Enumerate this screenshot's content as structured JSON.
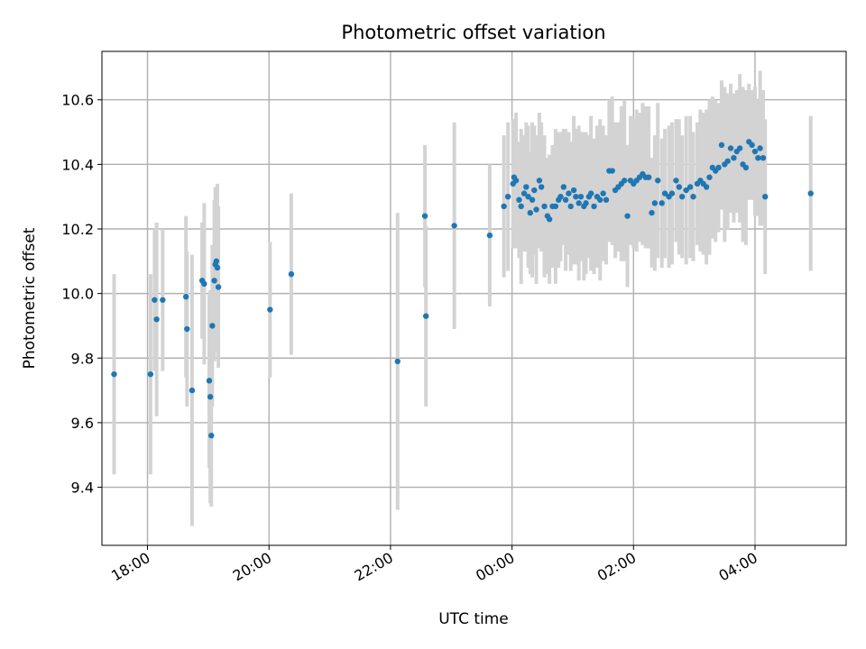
{
  "chart_data": {
    "type": "scatter",
    "title": "Photometric offset variation",
    "xlabel": "UTC time",
    "ylabel": "Photometric offset",
    "x_unit": "UTC time",
    "xlim": [
      "17:15",
      "05:30"
    ],
    "ylim": [
      9.22,
      10.75
    ],
    "x_ticks": [
      "18:00",
      "20:00",
      "22:00",
      "00:00",
      "02:00",
      "04:00"
    ],
    "y_ticks": [
      9.4,
      9.6,
      9.8,
      10.0,
      10.2,
      10.4,
      10.6
    ],
    "y_tick_labels": [
      "9.4",
      "9.6",
      "9.8",
      "10.0",
      "10.2",
      "10.4",
      "10.6"
    ],
    "grid": true,
    "legend": "none",
    "colors": {
      "point": "#1f77b4",
      "errorbar": "#d3d3d3",
      "grid": "#b0b0b0"
    },
    "x": [
      "17:27",
      "18:03",
      "18:07",
      "18:09",
      "18:15",
      "18:38",
      "18:39",
      "18:44",
      "18:54",
      "18:56",
      "19:01",
      "19:02",
      "19:03",
      "19:04",
      "19:06",
      "19:07",
      "19:08",
      "19:09",
      "19:10",
      "20:01",
      "20:22",
      "22:07",
      "22:34",
      "22:35",
      "23:03",
      "23:38",
      "23:52",
      "23:56",
      "00:01",
      "00:02",
      "00:04",
      "00:07",
      "00:09",
      "00:12",
      "00:14",
      "00:16",
      "00:18",
      "00:20",
      "00:22",
      "00:24",
      "00:27",
      "00:29",
      "00:32",
      "00:35",
      "00:37",
      "00:40",
      "00:43",
      "00:46",
      "00:48",
      "00:51",
      "00:53",
      "00:56",
      "00:58",
      "01:01",
      "01:03",
      "01:06",
      "01:08",
      "01:11",
      "01:13",
      "01:16",
      "01:18",
      "01:21",
      "01:24",
      "01:27",
      "01:30",
      "01:33",
      "01:36",
      "01:39",
      "01:42",
      "01:45",
      "01:48",
      "01:51",
      "01:54",
      "01:57",
      "02:00",
      "02:03",
      "02:06",
      "02:09",
      "02:12",
      "02:15",
      "02:18",
      "02:21",
      "02:24",
      "02:28",
      "02:31",
      "02:35",
      "02:38",
      "02:42",
      "02:45",
      "02:48",
      "02:52",
      "02:56",
      "02:59",
      "03:03",
      "03:06",
      "03:09",
      "03:12",
      "03:15",
      "03:18",
      "03:21",
      "03:24",
      "03:27",
      "03:30",
      "03:33",
      "03:36",
      "03:39",
      "03:42",
      "03:45",
      "03:48",
      "03:51",
      "03:54",
      "03:57",
      "04:00",
      "04:03",
      "04:05",
      "04:08",
      "04:10",
      "04:55"
    ],
    "y": [
      9.75,
      9.75,
      9.98,
      9.92,
      9.98,
      9.99,
      9.89,
      9.7,
      10.04,
      10.03,
      9.73,
      9.68,
      9.56,
      9.9,
      10.04,
      10.09,
      10.1,
      10.08,
      10.02,
      9.95,
      10.06,
      9.79,
      10.24,
      9.93,
      10.21,
      10.18,
      10.27,
      10.3,
      10.34,
      10.36,
      10.35,
      10.29,
      10.27,
      10.31,
      10.33,
      10.3,
      10.25,
      10.29,
      10.32,
      10.26,
      10.35,
      10.33,
      10.27,
      10.24,
      10.23,
      10.27,
      10.27,
      10.29,
      10.3,
      10.33,
      10.29,
      10.31,
      10.27,
      10.32,
      10.3,
      10.28,
      10.3,
      10.27,
      10.28,
      10.3,
      10.31,
      10.27,
      10.3,
      10.29,
      10.31,
      10.29,
      10.38,
      10.38,
      10.32,
      10.33,
      10.34,
      10.35,
      10.24,
      10.35,
      10.34,
      10.35,
      10.36,
      10.37,
      10.36,
      10.36,
      10.25,
      10.28,
      10.35,
      10.28,
      10.31,
      10.3,
      10.31,
      10.35,
      10.33,
      10.3,
      10.32,
      10.33,
      10.3,
      10.34,
      10.35,
      10.34,
      10.33,
      10.36,
      10.39,
      10.38,
      10.39,
      10.46,
      10.4,
      10.41,
      10.45,
      10.42,
      10.44,
      10.45,
      10.4,
      10.39,
      10.47,
      10.46,
      10.44,
      10.42,
      10.45,
      10.42,
      10.3,
      10.31
    ],
    "err": [
      0.31,
      0.31,
      0.22,
      0.3,
      0.22,
      0.25,
      0.24,
      0.42,
      0.18,
      0.25,
      0.27,
      0.33,
      0.22,
      0.25,
      0.25,
      0.24,
      0.22,
      0.26,
      0.25,
      0.21,
      0.25,
      0.46,
      0.22,
      0.28,
      0.32,
      0.22,
      0.22,
      0.23,
      0.2,
      0.18,
      0.21,
      0.18,
      0.24,
      0.18,
      0.2,
      0.22,
      0.19,
      0.24,
      0.2,
      0.23,
      0.21,
      0.2,
      0.22,
      0.18,
      0.2,
      0.19,
      0.24,
      0.21,
      0.2,
      0.18,
      0.22,
      0.19,
      0.2,
      0.23,
      0.21,
      0.24,
      0.2,
      0.23,
      0.22,
      0.19,
      0.24,
      0.21,
      0.22,
      0.25,
      0.21,
      0.2,
      0.22,
      0.23,
      0.21,
      0.2,
      0.24,
      0.25,
      0.22,
      0.2,
      0.2,
      0.22,
      0.2,
      0.22,
      0.22,
      0.22,
      0.17,
      0.21,
      0.24,
      0.2,
      0.2,
      0.22,
      0.22,
      0.19,
      0.21,
      0.19,
      0.23,
      0.22,
      0.2,
      0.19,
      0.22,
      0.22,
      0.24,
      0.24,
      0.22,
      0.22,
      0.2,
      0.2,
      0.24,
      0.21,
      0.2,
      0.2,
      0.19,
      0.23,
      0.24,
      0.24,
      0.18,
      0.17,
      0.2,
      0.18,
      0.24,
      0.21,
      0.24,
      0.24
    ]
  }
}
